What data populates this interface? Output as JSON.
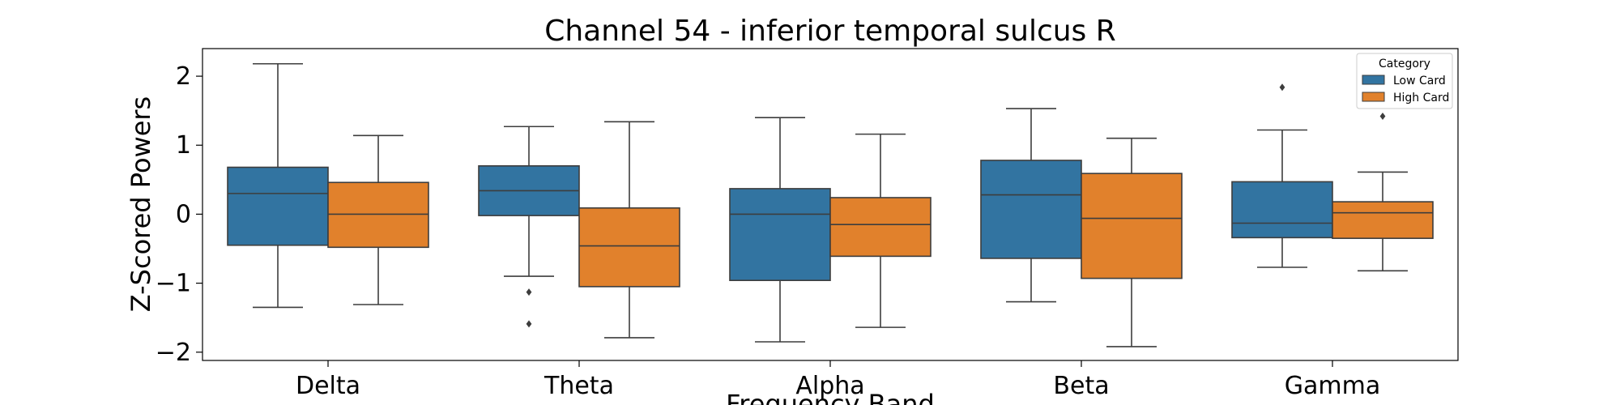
{
  "chart_data": {
    "type": "box",
    "title": "Channel 54 - inferior temporal sulcus R",
    "xlabel": "Frequency Band",
    "ylabel": "Z-Scored Powers",
    "ylim": [
      -2.12,
      2.4
    ],
    "yticks": [
      -2,
      -1,
      0,
      1,
      2
    ],
    "ytick_labels": [
      "−2",
      "−1",
      "0",
      "1",
      "2"
    ],
    "categories": [
      "Delta",
      "Theta",
      "Alpha",
      "Beta",
      "Gamma"
    ],
    "legend": {
      "title": "Category",
      "position": "top-right"
    },
    "grid": false,
    "series": [
      {
        "name": "Low Card",
        "color": "#3274a1",
        "boxes": [
          {
            "whislo": -1.35,
            "q1": -0.45,
            "med": 0.3,
            "q3": 0.68,
            "whishi": 2.18,
            "fliers": []
          },
          {
            "whislo": -0.9,
            "q1": -0.02,
            "med": 0.34,
            "q3": 0.7,
            "whishi": 1.27,
            "fliers": [
              -1.13,
              -1.59
            ]
          },
          {
            "whislo": -1.85,
            "q1": -0.96,
            "med": 0.0,
            "q3": 0.37,
            "whishi": 1.4,
            "fliers": []
          },
          {
            "whislo": -1.27,
            "q1": -0.64,
            "med": 0.28,
            "q3": 0.78,
            "whishi": 1.53,
            "fliers": []
          },
          {
            "whislo": -0.77,
            "q1": -0.34,
            "med": -0.13,
            "q3": 0.47,
            "whishi": 1.22,
            "fliers": [
              1.84
            ]
          }
        ]
      },
      {
        "name": "High Card",
        "color": "#e1812c",
        "boxes": [
          {
            "whislo": -1.31,
            "q1": -0.48,
            "med": 0.0,
            "q3": 0.46,
            "whishi": 1.14,
            "fliers": []
          },
          {
            "whislo": -1.79,
            "q1": -1.05,
            "med": -0.46,
            "q3": 0.09,
            "whishi": 1.34,
            "fliers": []
          },
          {
            "whislo": -1.64,
            "q1": -0.61,
            "med": -0.15,
            "q3": 0.24,
            "whishi": 1.16,
            "fliers": []
          },
          {
            "whislo": -1.92,
            "q1": -0.93,
            "med": -0.06,
            "q3": 0.59,
            "whishi": 1.1,
            "fliers": []
          },
          {
            "whislo": -0.82,
            "q1": -0.35,
            "med": 0.02,
            "q3": 0.18,
            "whishi": 0.61,
            "fliers": [
              1.42
            ]
          }
        ]
      }
    ]
  }
}
